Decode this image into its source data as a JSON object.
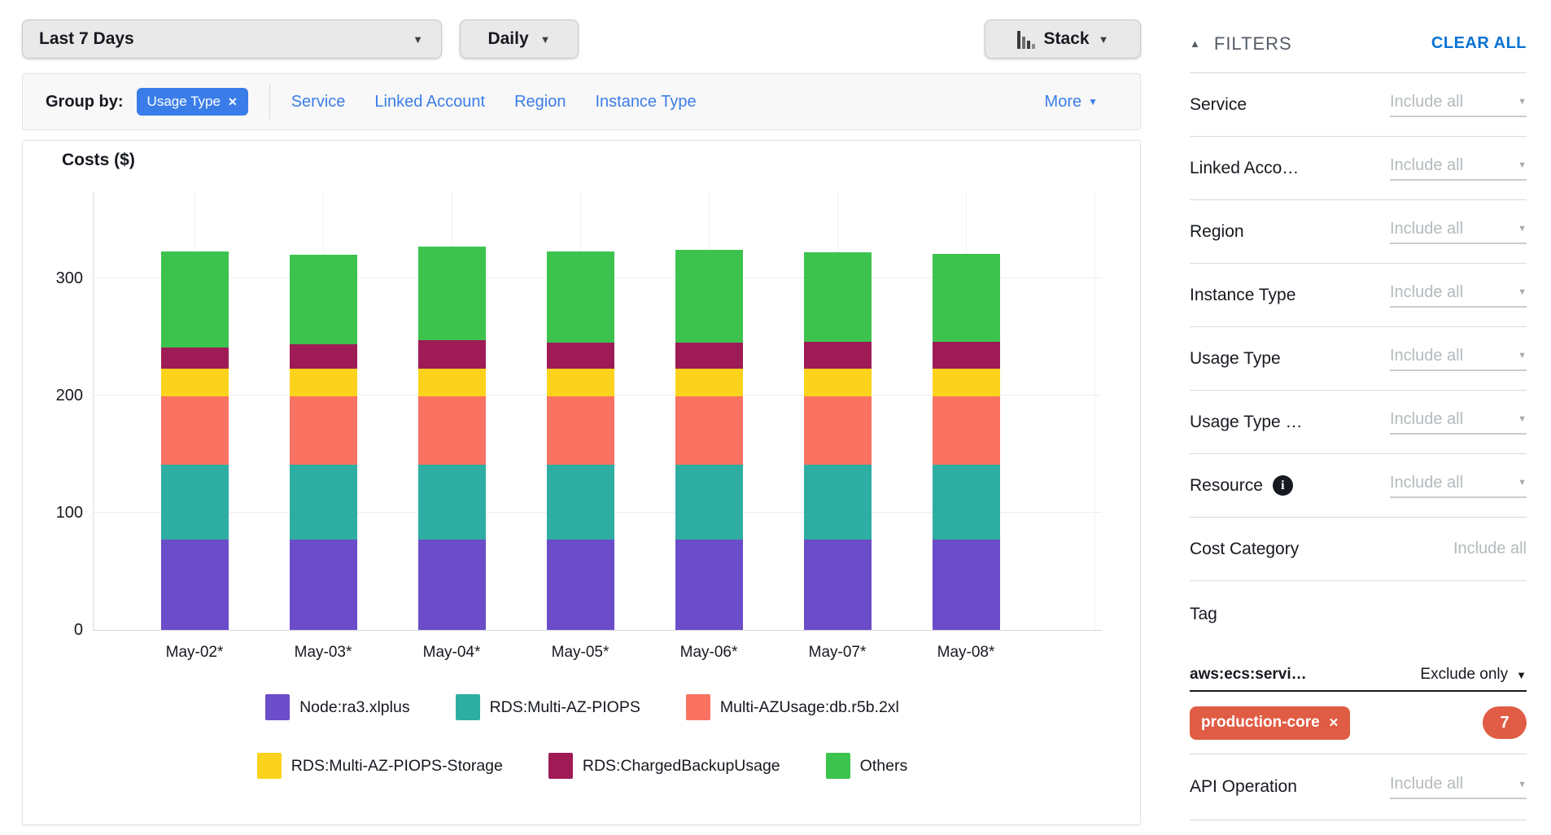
{
  "toolbar": {
    "date_range": "Last 7 Days",
    "granularity": "Daily",
    "chart_style": "Stack"
  },
  "group_by": {
    "label": "Group by:",
    "active_chip": "Usage Type",
    "options": [
      "Service",
      "Linked Account",
      "Region",
      "Instance Type"
    ],
    "more": "More"
  },
  "chart_data": {
    "type": "bar",
    "stacked": true,
    "title": "Costs ($)",
    "ylabel": "Costs ($)",
    "categories": [
      "May-02*",
      "May-03*",
      "May-04*",
      "May-05*",
      "May-06*",
      "May-07*",
      "May-08*"
    ],
    "series": [
      {
        "name": "Node:ra3.xlplus",
        "color": "#6B4CC9",
        "values": [
          77,
          77,
          77,
          77,
          77,
          77,
          77
        ]
      },
      {
        "name": "RDS:Multi-AZ-PIOPS",
        "color": "#2EADA2",
        "values": [
          64,
          64,
          64,
          64,
          64,
          64,
          64
        ]
      },
      {
        "name": "Multi-AZUsage:db.r5b.2xl",
        "color": "#FA7262",
        "values": [
          58,
          58,
          58,
          58,
          58,
          58,
          58
        ]
      },
      {
        "name": "RDS:Multi-AZ-PIOPS-Storage",
        "color": "#FCD31C",
        "values": [
          24,
          24,
          24,
          24,
          24,
          24,
          24
        ]
      },
      {
        "name": "RDS:ChargedBackupUsage",
        "color": "#9E1B56",
        "values": [
          18,
          21,
          24,
          22,
          22,
          23,
          23
        ]
      },
      {
        "name": "Others",
        "color": "#3CC34E",
        "values": [
          82,
          76,
          80,
          78,
          79,
          76,
          75
        ]
      }
    ],
    "yticks": [
      0,
      100,
      200,
      300
    ],
    "ylim": [
      0,
      375
    ],
    "grid": true,
    "legend_position": "bottom"
  },
  "filters": {
    "title": "FILTERS",
    "clear_all": "CLEAR ALL",
    "rows": [
      {
        "label": "Service",
        "value": "Include all",
        "caret": true,
        "underline": true,
        "info": false
      },
      {
        "label": "Linked Acco…",
        "value": "Include all",
        "caret": true,
        "underline": true,
        "info": false
      },
      {
        "label": "Region",
        "value": "Include all",
        "caret": true,
        "underline": true,
        "info": false
      },
      {
        "label": "Instance Type",
        "value": "Include all",
        "caret": true,
        "underline": true,
        "info": false
      },
      {
        "label": "Usage Type",
        "value": "Include all",
        "caret": true,
        "underline": true,
        "info": false
      },
      {
        "label": "Usage Type …",
        "value": "Include all",
        "caret": true,
        "underline": true,
        "info": false
      },
      {
        "label": "Resource",
        "value": "Include all",
        "caret": true,
        "underline": true,
        "info": true
      },
      {
        "label": "Cost Category",
        "value": "Include all",
        "caret": false,
        "underline": false,
        "info": false
      }
    ],
    "tag": {
      "label": "Tag",
      "key": "aws:ecs:servi…",
      "mode": "Exclude only",
      "chip": "production-core",
      "count": "7"
    },
    "api_row": {
      "label": "API Operation",
      "value": "Include all"
    }
  },
  "colors": {
    "accent_blue": "#3B7DE8",
    "clear_all_blue": "#0972D3",
    "chip_orange": "#E05C44",
    "filters_gray": "#545B64"
  }
}
